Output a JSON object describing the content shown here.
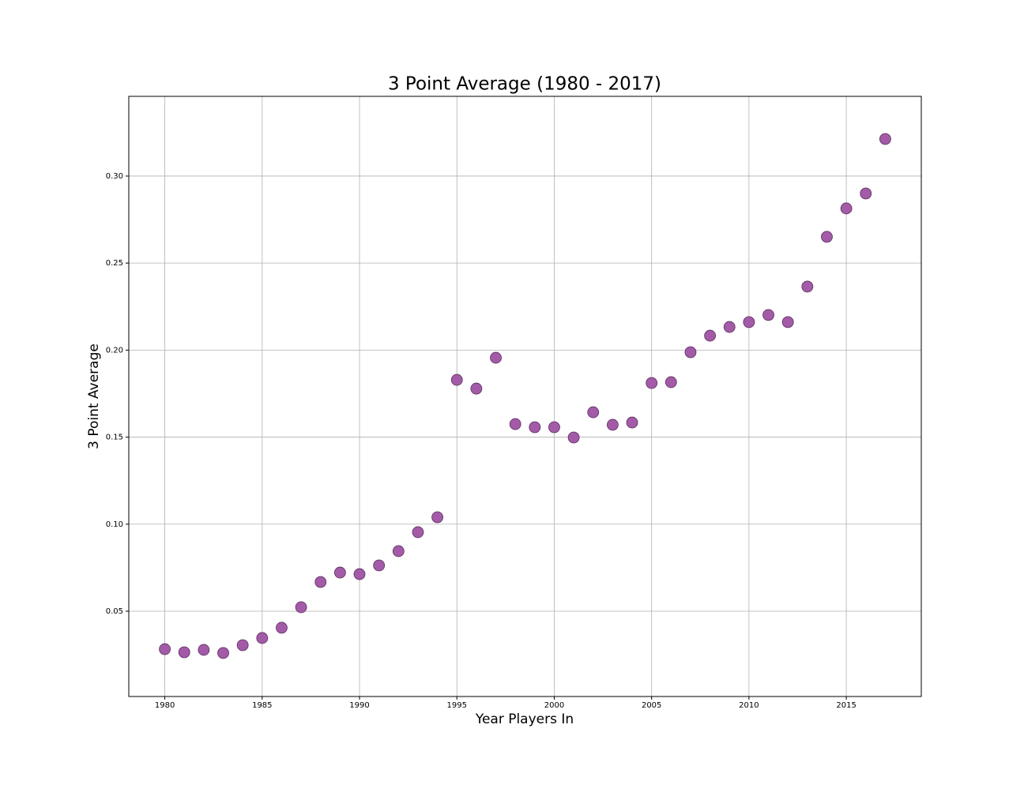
{
  "chart_data": {
    "type": "scatter",
    "title": "3 Point Average (1980 - 2017)",
    "x_label": "Year Players In",
    "y_label": "3 Point Average",
    "x": [
      1980,
      1981,
      1982,
      1983,
      1984,
      1985,
      1986,
      1987,
      1988,
      1989,
      1990,
      1991,
      1992,
      1993,
      1994,
      1995,
      1996,
      1997,
      1998,
      1999,
      2000,
      2001,
      2002,
      2003,
      2004,
      2005,
      2006,
      2007,
      2008,
      2009,
      2010,
      2011,
      2012,
      2013,
      2014,
      2015,
      2016,
      2017
    ],
    "values": [
      0.0282,
      0.0264,
      0.0278,
      0.026,
      0.0305,
      0.0346,
      0.0405,
      0.0523,
      0.0668,
      0.0722,
      0.0713,
      0.0763,
      0.0845,
      0.0954,
      0.104,
      0.1829,
      0.1779,
      0.1956,
      0.1575,
      0.1557,
      0.1557,
      0.1498,
      0.1643,
      0.1571,
      0.1584,
      0.1811,
      0.1816,
      0.1988,
      0.2083,
      0.2133,
      0.2161,
      0.2202,
      0.2161,
      0.2365,
      0.2651,
      0.2814,
      0.29,
      0.3213
    ],
    "color": "#a35ba8",
    "edgecolor": "#5a2d5e",
    "xlim": [
      1978.15,
      2018.85
    ],
    "xticks": [
      1980,
      1985,
      1990,
      1995,
      2000,
      2005,
      2010,
      2015
    ],
    "ylim": [
      0.001,
      0.3458
    ],
    "yticks": [
      0.05,
      {
        "value": 0.1,
        "label": "0.10"
      },
      0.15,
      {
        "value": 0.2,
        "label": "0.20"
      },
      0.25,
      {
        "value": 0.3,
        "label": "0.30"
      }
    ],
    "grid": true
  }
}
